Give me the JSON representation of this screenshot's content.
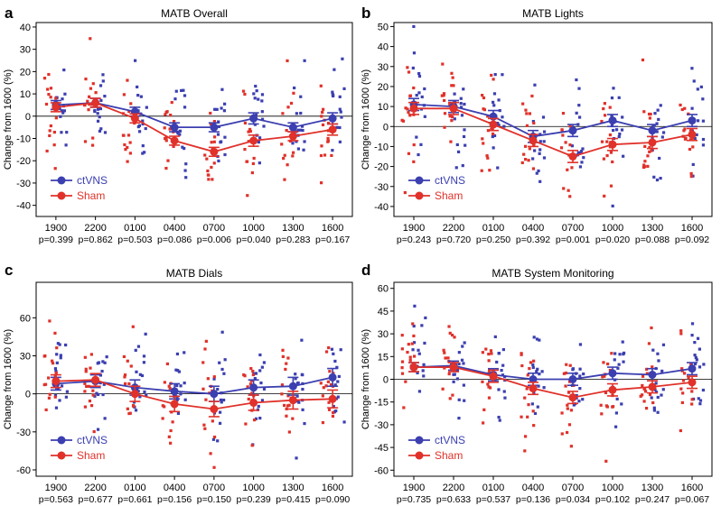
{
  "figure": {
    "colors": {
      "ctvns": "#3b3fb0",
      "sham": "#e0312a",
      "axis": "#000000"
    }
  },
  "chart_data": [
    {
      "panel": "a",
      "type": "scatter",
      "title": "MATB  Overall",
      "ylabel": "Change from 1600 (%)",
      "ylim": [
        -45,
        42
      ],
      "yticks": [
        -40,
        -30,
        -20,
        -10,
        0,
        10,
        20,
        30,
        40
      ],
      "categories": [
        "1900",
        "2200",
        "0100",
        "0400",
        "0700",
        "1000",
        "1300",
        "1600"
      ],
      "pvalues": [
        "p=0.399",
        "p=0.862",
        "p=0.503",
        "p=0.086",
        "p=0.006",
        "p=0.040",
        "p=0.283",
        "p=0.167"
      ],
      "legend": [
        "ctVNS",
        "Sham"
      ],
      "series": [
        {
          "name": "ctVNS",
          "values": [
            5,
            6,
            2,
            -5,
            -5,
            -1,
            -5,
            -1
          ],
          "sem": [
            2,
            2,
            2,
            2,
            2,
            2.5,
            2,
            2.5
          ]
        },
        {
          "name": "Sham",
          "values": [
            4,
            6,
            -1,
            -11,
            -16,
            -11,
            -9,
            -6
          ],
          "sem": [
            2,
            2,
            2,
            2,
            2,
            2.5,
            2,
            2.5
          ]
        }
      ]
    },
    {
      "panel": "b",
      "type": "scatter",
      "title": "MATB  Lights",
      "ylabel": "Change from 1600 (%)",
      "ylim": [
        -45,
        52
      ],
      "yticks": [
        -40,
        -30,
        -20,
        -10,
        0,
        10,
        20,
        30,
        40,
        50
      ],
      "categories": [
        "1900",
        "2200",
        "0100",
        "0400",
        "0700",
        "1000",
        "1300",
        "1600"
      ],
      "pvalues": [
        "p=0.243",
        "p=0.720",
        "p=0.250",
        "p=0.392",
        "p=0.001",
        "p=0.020",
        "p=0.088",
        "p=0.092"
      ],
      "legend": [
        "ctVNS",
        "Sham"
      ],
      "series": [
        {
          "name": "ctVNS",
          "values": [
            11,
            10,
            5,
            -5,
            -2,
            3,
            -2,
            3
          ],
          "sem": [
            3,
            3,
            3,
            3,
            3,
            3,
            3,
            3
          ]
        },
        {
          "name": "Sham",
          "values": [
            9,
            9,
            1,
            -7,
            -15,
            -9,
            -8,
            -4
          ],
          "sem": [
            3,
            3,
            3,
            3,
            3,
            3,
            3,
            3
          ]
        }
      ]
    },
    {
      "panel": "c",
      "type": "scatter",
      "title": "MATB  Dials",
      "ylabel": "Change from 1600 (%)",
      "ylim": [
        -65,
        88
      ],
      "yticks": [
        -60,
        -30,
        0,
        30,
        60
      ],
      "categories": [
        "1900",
        "2200",
        "0100",
        "0400",
        "0700",
        "1000",
        "1300",
        "1600"
      ],
      "pvalues": [
        "p=0.563",
        "p=0.677",
        "p=0.661",
        "p=0.156",
        "p=0.150",
        "p=0.239",
        "p=0.415",
        "p=0.090"
      ],
      "legend": [
        "ctVNS",
        "Sham"
      ],
      "series": [
        {
          "name": "ctVNS",
          "values": [
            8,
            10,
            5,
            2,
            0,
            5,
            6,
            13
          ],
          "sem": [
            5,
            5,
            6,
            6,
            6,
            6,
            7,
            7
          ]
        },
        {
          "name": "Sham",
          "values": [
            10,
            11,
            0,
            -8,
            -12,
            -7,
            -5,
            -4
          ],
          "sem": [
            5,
            5,
            6,
            6,
            6,
            6,
            7,
            7
          ]
        }
      ]
    },
    {
      "panel": "d",
      "type": "scatter",
      "title": "MATB  System Monitoring",
      "ylabel": "Change from 1600 (%)",
      "ylim": [
        -64,
        64
      ],
      "yticks": [
        -60,
        -45,
        -30,
        -15,
        0,
        15,
        30,
        45,
        60
      ],
      "categories": [
        "1900",
        "2200",
        "0100",
        "0400",
        "0700",
        "1000",
        "1300",
        "1600"
      ],
      "pvalues": [
        "p=0.735",
        "p=0.633",
        "p=0.537",
        "p=0.136",
        "p=0.034",
        "p=0.102",
        "p=0.247",
        "p=0.067"
      ],
      "legend": [
        "ctVNS",
        "Sham"
      ],
      "series": [
        {
          "name": "ctVNS",
          "values": [
            8,
            9,
            3,
            0,
            0,
            4,
            3,
            7
          ],
          "sem": [
            3,
            3,
            4,
            4,
            4,
            4,
            4,
            4
          ]
        },
        {
          "name": "Sham",
          "values": [
            8,
            8,
            2,
            -6,
            -12,
            -7,
            -5,
            -2
          ],
          "sem": [
            3,
            3,
            4,
            4,
            4,
            4,
            4,
            4
          ]
        }
      ]
    }
  ]
}
